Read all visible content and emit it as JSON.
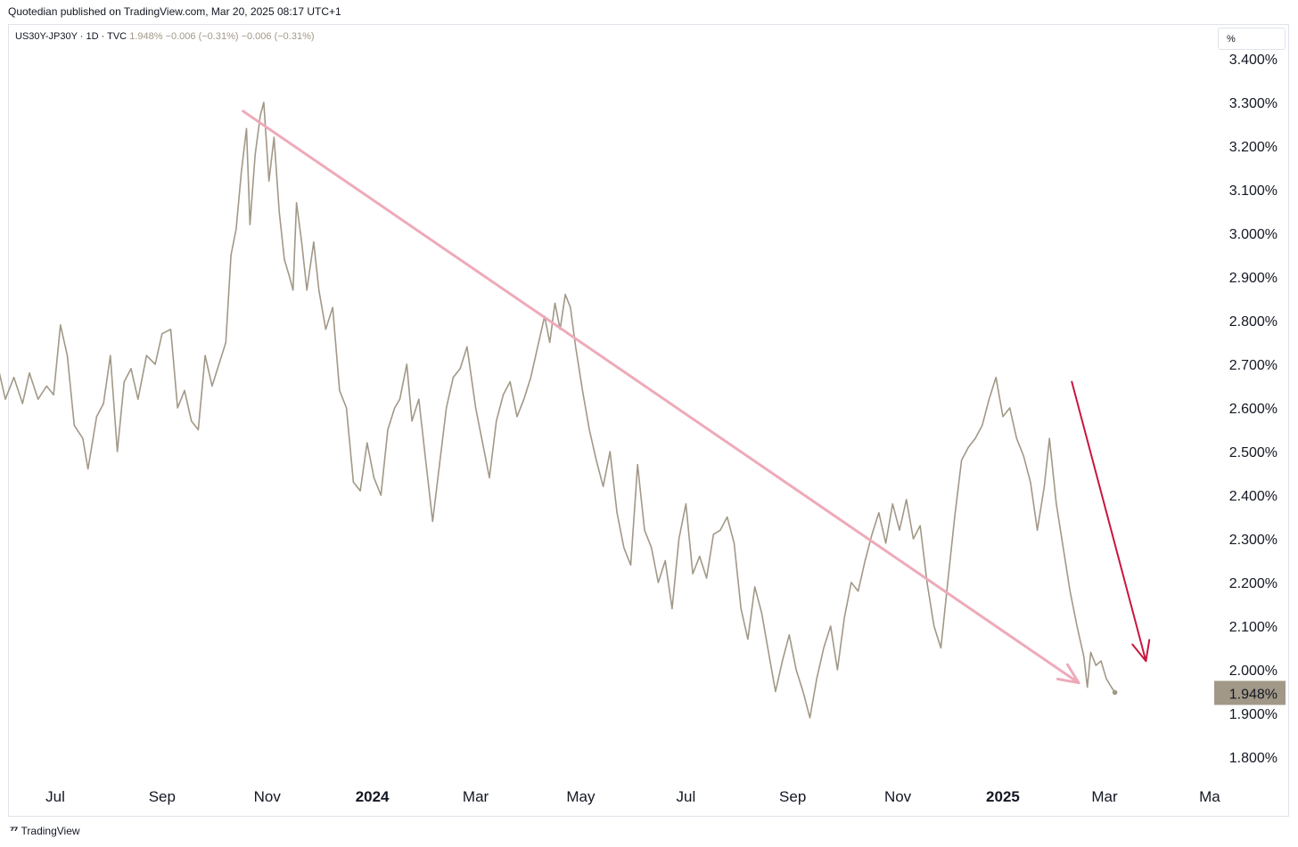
{
  "header": {
    "publisher_line": "Quotedian published on TradingView.com, Mar 20, 2025 08:17 UTC+1",
    "symbol_info": "US30Y-JP30Y · 1D · TVC",
    "price_change": "1.948%  −0.006 (−0.31%)  −0.006 (−0.31%)"
  },
  "scale_button": "%",
  "footer": {
    "logo_icon": "tradingview-logo-icon",
    "brand": "TradingView"
  },
  "colors": {
    "series": "#a29888",
    "trendline": "#eeaab9",
    "arrow": "#c9163e",
    "last_badge": "#a29888",
    "grid_border": "#e0e3eb"
  },
  "chart_data": {
    "type": "line",
    "ylim": [
      1.75,
      3.42
    ],
    "y_ticks": [
      {
        "v": 3.4,
        "label": "3.400%"
      },
      {
        "v": 3.3,
        "label": "3.300%"
      },
      {
        "v": 3.2,
        "label": "3.200%"
      },
      {
        "v": 3.1,
        "label": "3.100%"
      },
      {
        "v": 3.0,
        "label": "3.000%"
      },
      {
        "v": 2.9,
        "label": "2.900%"
      },
      {
        "v": 2.8,
        "label": "2.800%"
      },
      {
        "v": 2.7,
        "label": "2.700%"
      },
      {
        "v": 2.6,
        "label": "2.600%"
      },
      {
        "v": 2.5,
        "label": "2.500%"
      },
      {
        "v": 2.4,
        "label": "2.400%"
      },
      {
        "v": 2.3,
        "label": "2.300%"
      },
      {
        "v": 2.2,
        "label": "2.200%"
      },
      {
        "v": 2.1,
        "label": "2.100%"
      },
      {
        "v": 2.0,
        "label": "2.000%"
      },
      {
        "v": 1.9,
        "label": "1.900%"
      },
      {
        "v": 1.8,
        "label": "1.800%"
      }
    ],
    "x_ticks": [
      {
        "date": "2023-07-01",
        "label": "Jul",
        "bold": false
      },
      {
        "date": "2023-09-01",
        "label": "Sep",
        "bold": false
      },
      {
        "date": "2023-11-01",
        "label": "Nov",
        "bold": false
      },
      {
        "date": "2024-01-01",
        "label": "2024",
        "bold": true
      },
      {
        "date": "2024-03-01",
        "label": "Mar",
        "bold": false
      },
      {
        "date": "2024-05-01",
        "label": "May",
        "bold": false
      },
      {
        "date": "2024-07-01",
        "label": "Jul",
        "bold": false
      },
      {
        "date": "2024-09-01",
        "label": "Sep",
        "bold": false
      },
      {
        "date": "2024-11-01",
        "label": "Nov",
        "bold": false
      },
      {
        "date": "2025-01-01",
        "label": "2025",
        "bold": true
      },
      {
        "date": "2025-03-01",
        "label": "Mar",
        "bold": false
      },
      {
        "date": "2025-05-01",
        "label": "Ma",
        "bold": false
      }
    ],
    "last_value": {
      "value": 1.948,
      "label": "1.948%"
    },
    "series": [
      {
        "points": [
          [
            "2023-05-29",
            2.69
          ],
          [
            "2023-06-02",
            2.62
          ],
          [
            "2023-06-07",
            2.67
          ],
          [
            "2023-06-12",
            2.61
          ],
          [
            "2023-06-16",
            2.68
          ],
          [
            "2023-06-21",
            2.62
          ],
          [
            "2023-06-26",
            2.65
          ],
          [
            "2023-06-30",
            2.63
          ],
          [
            "2023-07-04",
            2.79
          ],
          [
            "2023-07-08",
            2.72
          ],
          [
            "2023-07-12",
            2.56
          ],
          [
            "2023-07-17",
            2.53
          ],
          [
            "2023-07-20",
            2.46
          ],
          [
            "2023-07-25",
            2.58
          ],
          [
            "2023-07-29",
            2.61
          ],
          [
            "2023-08-02",
            2.72
          ],
          [
            "2023-08-06",
            2.5
          ],
          [
            "2023-08-10",
            2.66
          ],
          [
            "2023-08-14",
            2.69
          ],
          [
            "2023-08-18",
            2.62
          ],
          [
            "2023-08-23",
            2.72
          ],
          [
            "2023-08-28",
            2.7
          ],
          [
            "2023-09-01",
            2.77
          ],
          [
            "2023-09-06",
            2.78
          ],
          [
            "2023-09-10",
            2.6
          ],
          [
            "2023-09-14",
            2.64
          ],
          [
            "2023-09-18",
            2.57
          ],
          [
            "2023-09-22",
            2.55
          ],
          [
            "2023-09-26",
            2.72
          ],
          [
            "2023-09-30",
            2.65
          ],
          [
            "2023-10-04",
            2.7
          ],
          [
            "2023-10-08",
            2.75
          ],
          [
            "2023-10-11",
            2.95
          ],
          [
            "2023-10-14",
            3.01
          ],
          [
            "2023-10-17",
            3.14
          ],
          [
            "2023-10-20",
            3.24
          ],
          [
            "2023-10-22",
            3.02
          ],
          [
            "2023-10-25",
            3.18
          ],
          [
            "2023-10-28",
            3.27
          ],
          [
            "2023-10-30",
            3.3
          ],
          [
            "2023-11-02",
            3.12
          ],
          [
            "2023-11-05",
            3.22
          ],
          [
            "2023-11-08",
            3.05
          ],
          [
            "2023-11-11",
            2.94
          ],
          [
            "2023-11-14",
            2.9
          ],
          [
            "2023-11-16",
            2.87
          ],
          [
            "2023-11-18",
            3.07
          ],
          [
            "2023-11-21",
            2.98
          ],
          [
            "2023-11-24",
            2.87
          ],
          [
            "2023-11-28",
            2.98
          ],
          [
            "2023-12-01",
            2.87
          ],
          [
            "2023-12-05",
            2.78
          ],
          [
            "2023-12-09",
            2.83
          ],
          [
            "2023-12-13",
            2.64
          ],
          [
            "2023-12-17",
            2.6
          ],
          [
            "2023-12-21",
            2.43
          ],
          [
            "2023-12-25",
            2.41
          ],
          [
            "2023-12-29",
            2.52
          ],
          [
            "2024-01-02",
            2.44
          ],
          [
            "2024-01-06",
            2.4
          ],
          [
            "2024-01-10",
            2.55
          ],
          [
            "2024-01-14",
            2.6
          ],
          [
            "2024-01-17",
            2.62
          ],
          [
            "2024-01-21",
            2.7
          ],
          [
            "2024-01-24",
            2.57
          ],
          [
            "2024-01-28",
            2.62
          ],
          [
            "2024-02-01",
            2.48
          ],
          [
            "2024-02-05",
            2.34
          ],
          [
            "2024-02-09",
            2.47
          ],
          [
            "2024-02-13",
            2.6
          ],
          [
            "2024-02-17",
            2.67
          ],
          [
            "2024-02-21",
            2.69
          ],
          [
            "2024-02-25",
            2.74
          ],
          [
            "2024-03-01",
            2.6
          ],
          [
            "2024-03-05",
            2.52
          ],
          [
            "2024-03-09",
            2.44
          ],
          [
            "2024-03-13",
            2.57
          ],
          [
            "2024-03-17",
            2.63
          ],
          [
            "2024-03-21",
            2.66
          ],
          [
            "2024-03-25",
            2.58
          ],
          [
            "2024-03-29",
            2.62
          ],
          [
            "2024-04-02",
            2.67
          ],
          [
            "2024-04-06",
            2.74
          ],
          [
            "2024-04-10",
            2.81
          ],
          [
            "2024-04-13",
            2.75
          ],
          [
            "2024-04-16",
            2.84
          ],
          [
            "2024-04-19",
            2.78
          ],
          [
            "2024-04-22",
            2.86
          ],
          [
            "2024-04-25",
            2.83
          ],
          [
            "2024-04-28",
            2.74
          ],
          [
            "2024-05-02",
            2.64
          ],
          [
            "2024-05-06",
            2.55
          ],
          [
            "2024-05-10",
            2.48
          ],
          [
            "2024-05-14",
            2.42
          ],
          [
            "2024-05-18",
            2.5
          ],
          [
            "2024-05-22",
            2.36
          ],
          [
            "2024-05-26",
            2.28
          ],
          [
            "2024-05-30",
            2.24
          ],
          [
            "2024-06-03",
            2.47
          ],
          [
            "2024-06-07",
            2.32
          ],
          [
            "2024-06-11",
            2.28
          ],
          [
            "2024-06-15",
            2.2
          ],
          [
            "2024-06-19",
            2.25
          ],
          [
            "2024-06-23",
            2.14
          ],
          [
            "2024-06-27",
            2.3
          ],
          [
            "2024-07-01",
            2.38
          ],
          [
            "2024-07-05",
            2.22
          ],
          [
            "2024-07-09",
            2.26
          ],
          [
            "2024-07-13",
            2.21
          ],
          [
            "2024-07-17",
            2.31
          ],
          [
            "2024-07-21",
            2.32
          ],
          [
            "2024-07-25",
            2.35
          ],
          [
            "2024-07-29",
            2.29
          ],
          [
            "2024-08-02",
            2.14
          ],
          [
            "2024-08-06",
            2.07
          ],
          [
            "2024-08-10",
            2.19
          ],
          [
            "2024-08-14",
            2.13
          ],
          [
            "2024-08-18",
            2.04
          ],
          [
            "2024-08-22",
            1.95
          ],
          [
            "2024-08-26",
            2.02
          ],
          [
            "2024-08-30",
            2.08
          ],
          [
            "2024-09-03",
            2.0
          ],
          [
            "2024-09-07",
            1.95
          ],
          [
            "2024-09-11",
            1.89
          ],
          [
            "2024-09-15",
            1.98
          ],
          [
            "2024-09-19",
            2.05
          ],
          [
            "2024-09-23",
            2.1
          ],
          [
            "2024-09-27",
            2.0
          ],
          [
            "2024-10-01",
            2.12
          ],
          [
            "2024-10-05",
            2.2
          ],
          [
            "2024-10-09",
            2.18
          ],
          [
            "2024-10-13",
            2.25
          ],
          [
            "2024-10-17",
            2.31
          ],
          [
            "2024-10-21",
            2.36
          ],
          [
            "2024-10-25",
            2.29
          ],
          [
            "2024-10-29",
            2.38
          ],
          [
            "2024-11-02",
            2.32
          ],
          [
            "2024-11-06",
            2.39
          ],
          [
            "2024-11-10",
            2.3
          ],
          [
            "2024-11-14",
            2.33
          ],
          [
            "2024-11-18",
            2.2
          ],
          [
            "2024-11-22",
            2.1
          ],
          [
            "2024-11-26",
            2.05
          ],
          [
            "2024-11-30",
            2.2
          ],
          [
            "2024-12-04",
            2.35
          ],
          [
            "2024-12-08",
            2.48
          ],
          [
            "2024-12-12",
            2.51
          ],
          [
            "2024-12-16",
            2.53
          ],
          [
            "2024-12-20",
            2.56
          ],
          [
            "2024-12-24",
            2.62
          ],
          [
            "2024-12-28",
            2.67
          ],
          [
            "2025-01-01",
            2.58
          ],
          [
            "2025-01-05",
            2.6
          ],
          [
            "2025-01-09",
            2.53
          ],
          [
            "2025-01-13",
            2.49
          ],
          [
            "2025-01-17",
            2.43
          ],
          [
            "2025-01-21",
            2.32
          ],
          [
            "2025-01-25",
            2.42
          ],
          [
            "2025-01-28",
            2.53
          ],
          [
            "2025-02-01",
            2.38
          ],
          [
            "2025-02-05",
            2.28
          ],
          [
            "2025-02-09",
            2.18
          ],
          [
            "2025-02-13",
            2.1
          ],
          [
            "2025-02-17",
            2.03
          ],
          [
            "2025-02-19",
            1.96
          ],
          [
            "2025-02-21",
            2.04
          ],
          [
            "2025-02-24",
            2.01
          ],
          [
            "2025-02-27",
            2.02
          ],
          [
            "2025-03-02",
            1.98
          ],
          [
            "2025-03-05",
            1.96
          ],
          [
            "2025-03-07",
            1.948
          ]
        ]
      }
    ],
    "annotations": [
      {
        "kind": "trend-arrow",
        "from": [
          "2023-10-18",
          3.28
        ],
        "to": [
          "2025-02-14",
          1.97
        ]
      },
      {
        "kind": "arrow",
        "from": [
          "2025-02-10",
          2.66
        ],
        "to": [
          "2025-03-25",
          2.02
        ]
      }
    ]
  }
}
